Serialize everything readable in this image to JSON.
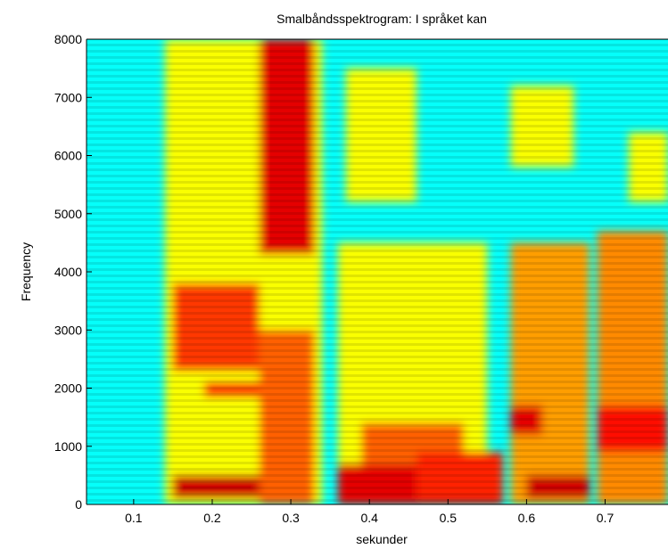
{
  "chart_data": {
    "type": "heatmap",
    "title": "Smalbåndsspektrogram: I språket kan",
    "xlabel": "sekunder",
    "ylabel": "Frequency",
    "xlim": [
      0.04,
      0.78
    ],
    "ylim": [
      0,
      8000
    ],
    "x_ticks": [
      "0.1",
      "0.2",
      "0.3",
      "0.4",
      "0.5",
      "0.6",
      "0.7"
    ],
    "x_tick_values": [
      0.1,
      0.2,
      0.3,
      0.4,
      0.5,
      0.6,
      0.7
    ],
    "y_ticks": [
      "0",
      "1000",
      "2000",
      "3000",
      "4000",
      "5000",
      "6000",
      "7000",
      "8000"
    ],
    "y_tick_values": [
      0,
      1000,
      2000,
      3000,
      4000,
      5000,
      6000,
      7000,
      8000
    ],
    "colormap": "jet",
    "background_level": 0.38,
    "energy_regions": [
      {
        "t0": 0.14,
        "t1": 0.34,
        "f0": 0,
        "f1": 8000,
        "level": 0.62
      },
      {
        "t0": 0.15,
        "t1": 0.26,
        "f0": 2300,
        "f1": 3800,
        "level": 0.82
      },
      {
        "t0": 0.19,
        "t1": 0.26,
        "f0": 1850,
        "f1": 2100,
        "level": 0.86
      },
      {
        "t0": 0.15,
        "t1": 0.32,
        "f0": 100,
        "f1": 500,
        "level": 0.92
      },
      {
        "t0": 0.26,
        "t1": 0.33,
        "f0": 4300,
        "f1": 8000,
        "level": 0.9
      },
      {
        "t0": 0.26,
        "t1": 0.33,
        "f0": 0,
        "f1": 3000,
        "level": 0.78
      },
      {
        "t0": 0.36,
        "t1": 0.57,
        "f0": 0,
        "f1": 700,
        "level": 0.9
      },
      {
        "t0": 0.36,
        "t1": 0.55,
        "f0": 700,
        "f1": 4500,
        "level": 0.62
      },
      {
        "t0": 0.39,
        "t1": 0.52,
        "f0": 700,
        "f1": 1400,
        "level": 0.78
      },
      {
        "t0": 0.37,
        "t1": 0.46,
        "f0": 5200,
        "f1": 7500,
        "level": 0.62
      },
      {
        "t0": 0.46,
        "t1": 0.57,
        "f0": 100,
        "f1": 900,
        "level": 0.84
      },
      {
        "t0": 0.58,
        "t1": 0.68,
        "f0": 0,
        "f1": 4500,
        "level": 0.72
      },
      {
        "t0": 0.58,
        "t1": 0.62,
        "f0": 1200,
        "f1": 1700,
        "level": 0.9
      },
      {
        "t0": 0.6,
        "t1": 0.68,
        "f0": 100,
        "f1": 500,
        "level": 0.92
      },
      {
        "t0": 0.58,
        "t1": 0.66,
        "f0": 5800,
        "f1": 7200,
        "level": 0.62
      },
      {
        "t0": 0.69,
        "t1": 0.78,
        "f0": 0,
        "f1": 4700,
        "level": 0.74
      },
      {
        "t0": 0.69,
        "t1": 0.78,
        "f0": 900,
        "f1": 1700,
        "level": 0.86
      },
      {
        "t0": 0.73,
        "t1": 0.78,
        "f0": 5200,
        "f1": 6400,
        "level": 0.62
      }
    ]
  }
}
